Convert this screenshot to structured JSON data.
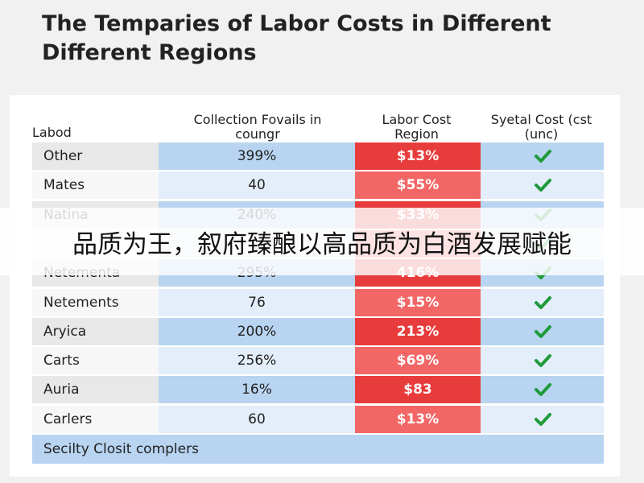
{
  "header": {
    "title_lines": [
      "The Temparies of Labor Costs in Different",
      "Different Regions"
    ]
  },
  "table": {
    "headers": [
      "Labod",
      "Collection Fovails in coungr",
      "Labor Cost Region",
      "Syetal Cost (cst (unc)"
    ],
    "rows": [
      [
        "Other",
        "399%",
        "$13%"
      ],
      [
        "Mates",
        "40",
        "$55%"
      ],
      [
        "Natina",
        "240%",
        "$33%"
      ],
      [
        null,
        null,
        null
      ],
      [
        "Netementa",
        "295%",
        "416%"
      ],
      [
        "Netements",
        "76",
        "$15%"
      ],
      [
        "Aryica",
        "200%",
        "213%"
      ],
      [
        "Carts",
        "256%",
        "$69%"
      ],
      [
        "Auria",
        "16%",
        "$83"
      ],
      [
        "Carlers",
        "60",
        "$13%"
      ]
    ],
    "footer": "Secilty Closit complers"
  },
  "banner": "品质为王，叙府臻酿以高品质为白酒发展赋能"
}
